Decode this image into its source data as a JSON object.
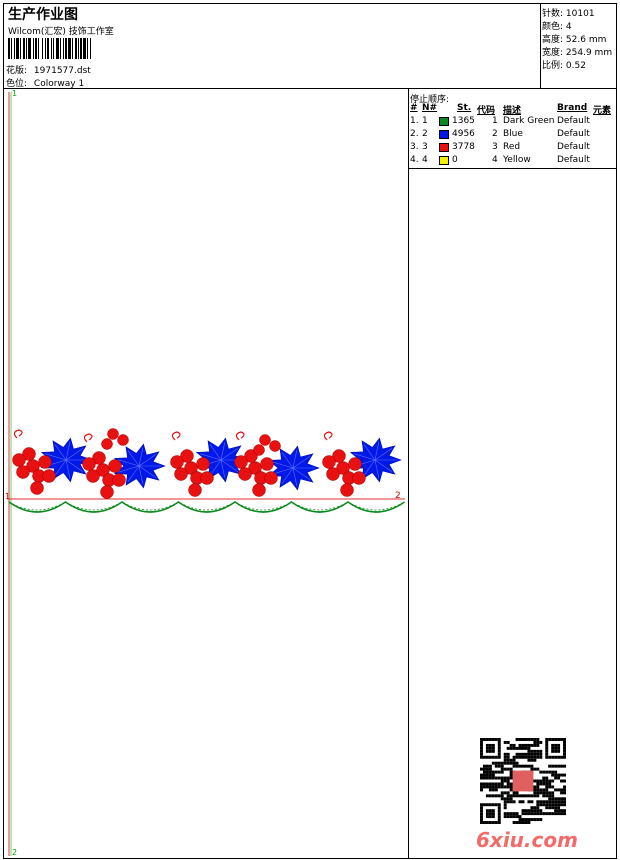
{
  "header": {
    "title": "生产作业图",
    "company": "Wilcom(汇宏) 技饰工作室",
    "design_label": "花版:",
    "design_value": "1971577.dst",
    "colorway_label": "色位:",
    "colorway_value": "Colorway 1"
  },
  "info": {
    "stitches_label": "针数:",
    "stitches_value": "10101",
    "colors_label": "颜色:",
    "colors_value": "4",
    "height_label": "高度:",
    "height_value": "52.6 mm",
    "width_label": "宽度:",
    "width_value": "254.9 mm",
    "scale_label": "比例:",
    "scale_value": "0.52"
  },
  "stop_sequence": {
    "title": "停止顺序:",
    "columns": [
      "#",
      "N#",
      "St.",
      "代码",
      "描述",
      "Brand",
      "元素"
    ],
    "rows": [
      {
        "index": "1.",
        "needle": "1",
        "color": "#0a8a1e",
        "stitches": "1365",
        "code": "1",
        "desc": "Dark Green",
        "brand": "Default"
      },
      {
        "index": "2.",
        "needle": "2",
        "color": "#0018e8",
        "stitches": "4956",
        "code": "2",
        "desc": "Blue",
        "brand": "Default"
      },
      {
        "index": "3.",
        "needle": "3",
        "color": "#e81010",
        "stitches": "3778",
        "code": "3",
        "desc": "Red",
        "brand": "Default"
      },
      {
        "index": "4.",
        "needle": "4",
        "color": "#f2f200",
        "stitches": "0",
        "code": "4",
        "desc": "Yellow",
        "brand": "Default"
      }
    ]
  },
  "canvas": {
    "axis_start": "1",
    "axis_end": "2",
    "mark_start": "1",
    "mark_end": "2"
  },
  "watermark": "6xiu.com"
}
